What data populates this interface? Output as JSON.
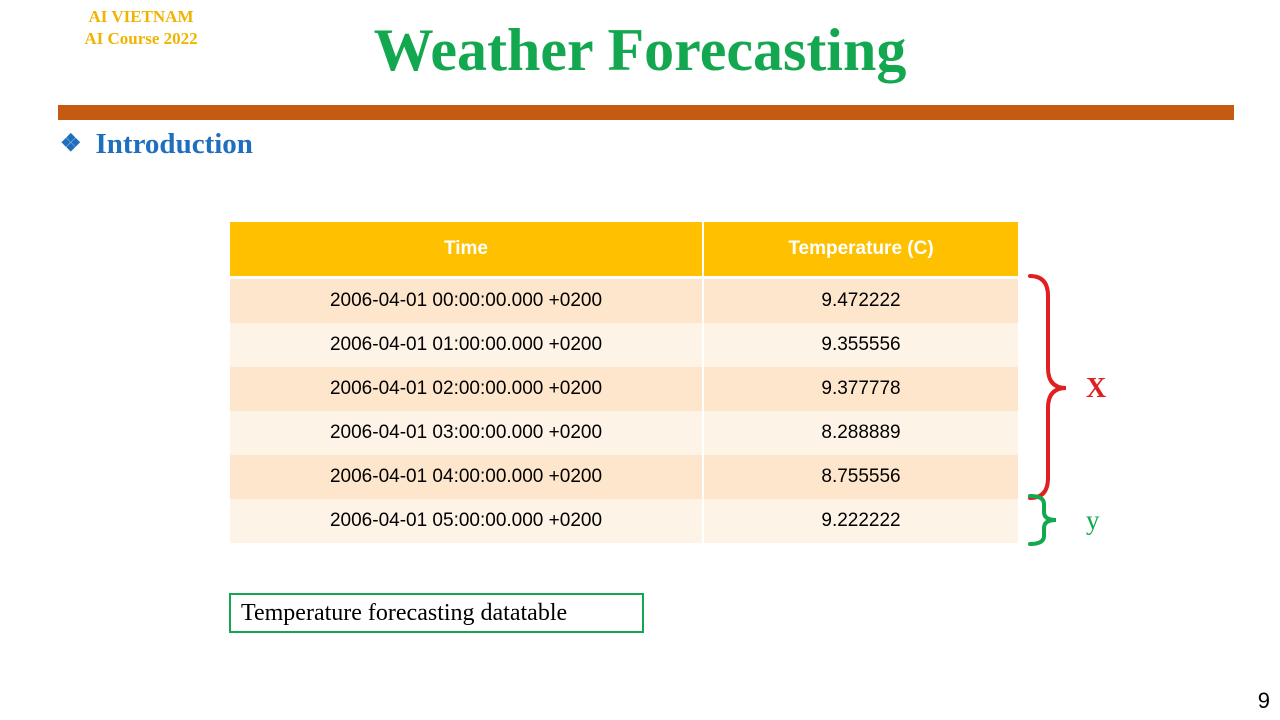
{
  "brand": {
    "line1": "AI VIETNAM",
    "line2": "AI Course 2022"
  },
  "title": "Weather Forecasting",
  "section": {
    "bullet": "❖",
    "label": "Introduction"
  },
  "table": {
    "headers": [
      "Time",
      "Temperature (C)"
    ],
    "rows": [
      [
        "2006-04-01 00:00:00.000 +0200",
        "9.472222"
      ],
      [
        "2006-04-01 01:00:00.000 +0200",
        "9.355556"
      ],
      [
        "2006-04-01 02:00:00.000 +0200",
        "9.377778"
      ],
      [
        "2006-04-01 03:00:00.000 +0200",
        "8.288889"
      ],
      [
        "2006-04-01 04:00:00.000 +0200",
        "8.755556"
      ],
      [
        "2006-04-01 05:00:00.000 +0200",
        "9.222222"
      ]
    ]
  },
  "brackets": {
    "x_label": "X",
    "y_label": "y",
    "x_color": "#e02020",
    "y_color": "#13a84f"
  },
  "caption": "Temperature forecasting datatable",
  "page_number": "9",
  "colors": {
    "title": "#13a84f",
    "brand": "#f0b400",
    "rule": "#c55a11",
    "section": "#1f6fbf",
    "header_bg": "#ffc000"
  }
}
